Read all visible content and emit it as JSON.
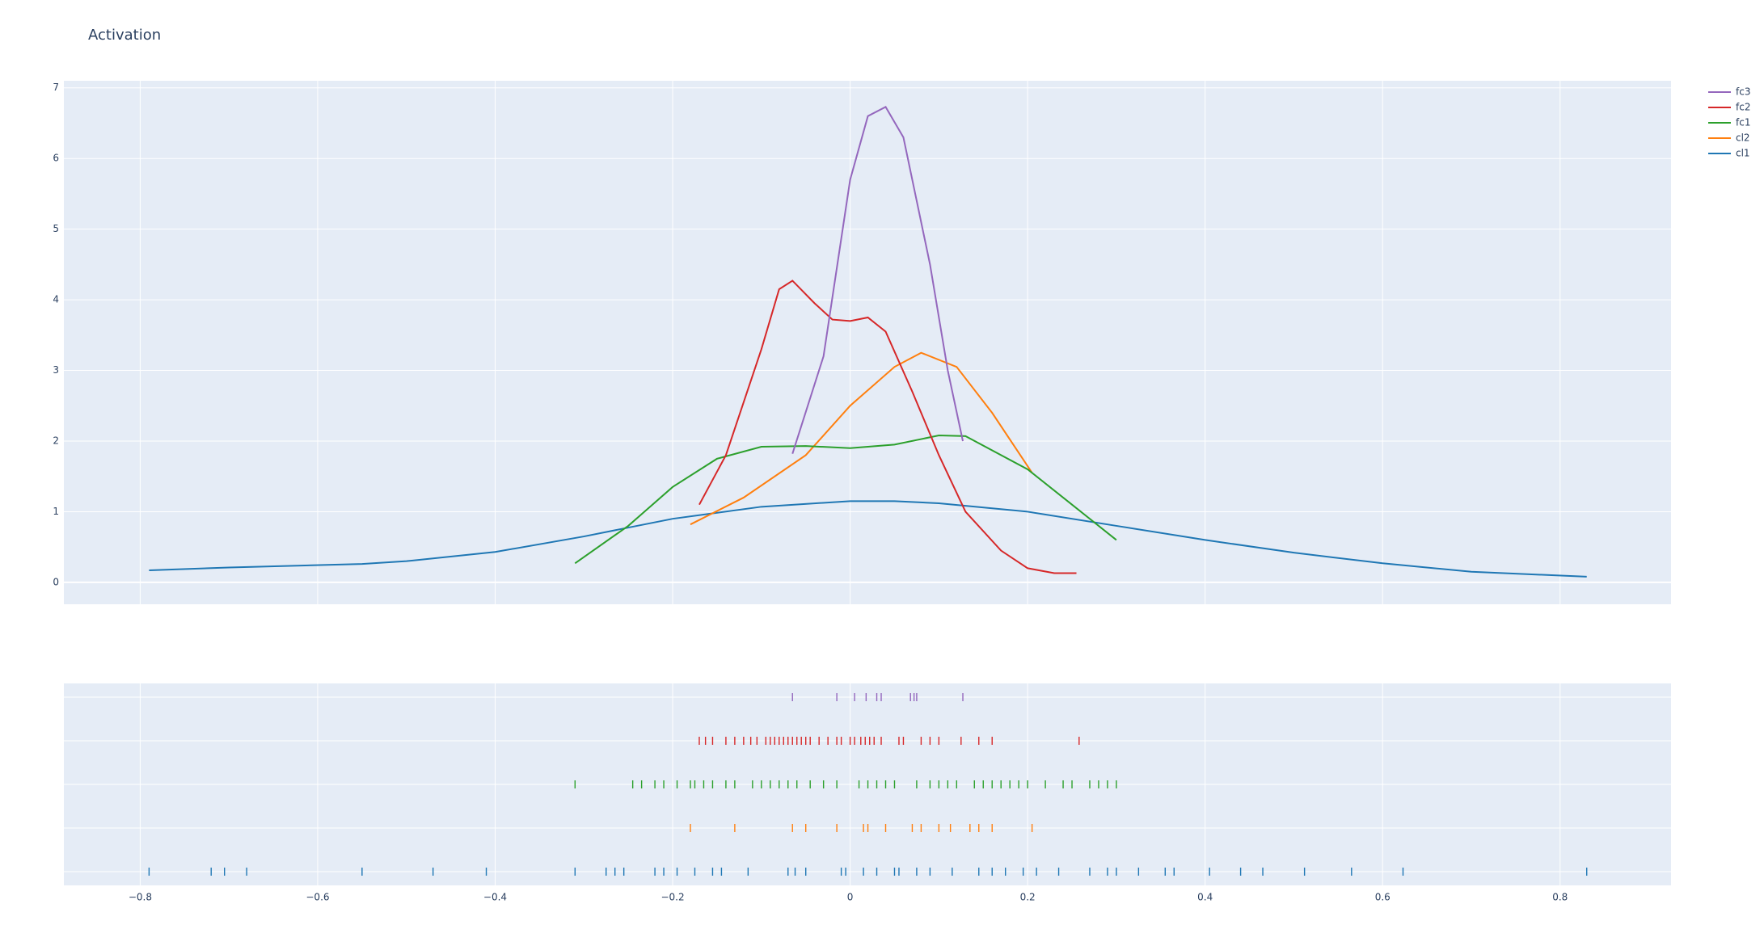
{
  "chart_data": [
    {
      "type": "line",
      "title": "Activation",
      "grid": true,
      "xlim": [
        -0.886,
        0.925
      ],
      "xticks": [
        -0.8,
        -0.6,
        -0.4,
        -0.2,
        0,
        0.2,
        0.4,
        0.6,
        0.8
      ],
      "ylim": [
        -0.31,
        7.1
      ],
      "yticks": [
        0,
        1,
        2,
        3,
        4,
        5,
        6,
        7
      ],
      "legend": "top-right",
      "series": [
        {
          "name": "fc3",
          "color": "#9467bd",
          "x": [
            -0.065,
            -0.03,
            0,
            0.02,
            0.04,
            0.06,
            0.09,
            0.11,
            0.127
          ],
          "values": [
            1.82,
            3.2,
            5.7,
            6.6,
            6.73,
            6.3,
            4.5,
            3.0,
            2.0
          ]
        },
        {
          "name": "fc2",
          "color": "#d62728",
          "x": [
            -0.17,
            -0.14,
            -0.1,
            -0.08,
            -0.065,
            -0.04,
            -0.02,
            0,
            0.02,
            0.04,
            0.07,
            0.1,
            0.13,
            0.17,
            0.2,
            0.23,
            0.255
          ],
          "values": [
            1.1,
            1.8,
            3.3,
            4.15,
            4.27,
            3.95,
            3.72,
            3.7,
            3.75,
            3.55,
            2.7,
            1.8,
            1.0,
            0.45,
            0.2,
            0.13,
            0.13
          ]
        },
        {
          "name": "fc1",
          "color": "#2ca02c",
          "x": [
            -0.31,
            -0.25,
            -0.2,
            -0.15,
            -0.1,
            -0.05,
            0,
            0.05,
            0.1,
            0.13,
            0.2,
            0.25,
            0.3
          ],
          "values": [
            0.27,
            0.8,
            1.35,
            1.75,
            1.92,
            1.93,
            1.9,
            1.95,
            2.08,
            2.07,
            1.6,
            1.1,
            0.6
          ]
        },
        {
          "name": "cl2",
          "color": "#ff7f0e",
          "x": [
            -0.18,
            -0.12,
            -0.05,
            0,
            0.05,
            0.08,
            0.12,
            0.16,
            0.205
          ],
          "values": [
            0.82,
            1.2,
            1.8,
            2.5,
            3.05,
            3.25,
            3.05,
            2.4,
            1.55
          ]
        },
        {
          "name": "cl1",
          "color": "#1f77b4",
          "x": [
            -0.79,
            -0.7,
            -0.55,
            -0.5,
            -0.4,
            -0.3,
            -0.2,
            -0.1,
            0,
            0.05,
            0.1,
            0.2,
            0.3,
            0.4,
            0.5,
            0.6,
            0.7,
            0.83
          ],
          "values": [
            0.17,
            0.21,
            0.26,
            0.3,
            0.43,
            0.65,
            0.9,
            1.07,
            1.15,
            1.15,
            1.12,
            1.0,
            0.8,
            0.6,
            0.42,
            0.27,
            0.15,
            0.08
          ]
        }
      ]
    },
    {
      "type": "rug",
      "grid": true,
      "xlim": [
        -0.886,
        0.925
      ],
      "xticks": [
        {
          "value": -0.8,
          "label": "−0.8"
        },
        {
          "value": -0.6,
          "label": "−0.6"
        },
        {
          "value": -0.4,
          "label": "−0.4"
        },
        {
          "value": -0.2,
          "label": "−0.2"
        },
        0,
        0.2,
        0.4,
        0.6,
        0.8
      ],
      "series": [
        {
          "color": "#9467bd",
          "values": [
            -0.065,
            -0.015,
            0.005,
            0.018,
            0.03,
            0.035,
            0.068,
            0.072,
            0.075,
            0.127
          ]
        },
        {
          "color": "#d62728",
          "values": [
            -0.17,
            -0.163,
            -0.155,
            -0.14,
            -0.13,
            -0.12,
            -0.112,
            -0.105,
            -0.095,
            -0.09,
            -0.085,
            -0.08,
            -0.075,
            -0.07,
            -0.065,
            -0.06,
            -0.055,
            -0.05,
            -0.045,
            -0.035,
            -0.025,
            -0.015,
            -0.01,
            0,
            0.005,
            0.012,
            0.017,
            0.022,
            0.027,
            0.035,
            0.055,
            0.06,
            0.08,
            0.09,
            0.1,
            0.125,
            0.145,
            0.16,
            0.258
          ]
        },
        {
          "color": "#2ca02c",
          "values": [
            -0.31,
            -0.245,
            -0.235,
            -0.22,
            -0.21,
            -0.195,
            -0.18,
            -0.175,
            -0.165,
            -0.155,
            -0.14,
            -0.13,
            -0.11,
            -0.1,
            -0.09,
            -0.08,
            -0.07,
            -0.06,
            -0.045,
            -0.03,
            -0.015,
            0.01,
            0.02,
            0.03,
            0.04,
            0.05,
            0.075,
            0.09,
            0.1,
            0.11,
            0.12,
            0.14,
            0.15,
            0.16,
            0.17,
            0.18,
            0.19,
            0.2,
            0.22,
            0.24,
            0.25,
            0.27,
            0.28,
            0.29,
            0.3
          ]
        },
        {
          "color": "#ff7f0e",
          "values": [
            -0.18,
            -0.13,
            -0.065,
            -0.05,
            -0.015,
            0.015,
            0.02,
            0.04,
            0.07,
            0.08,
            0.1,
            0.113,
            0.135,
            0.145,
            0.16,
            0.205
          ]
        },
        {
          "color": "#1f77b4",
          "values": [
            -0.79,
            -0.72,
            -0.705,
            -0.68,
            -0.55,
            -0.47,
            -0.41,
            -0.31,
            -0.275,
            -0.265,
            -0.255,
            -0.22,
            -0.21,
            -0.195,
            -0.175,
            -0.155,
            -0.145,
            -0.115,
            -0.07,
            -0.062,
            -0.05,
            -0.01,
            -0.005,
            0.015,
            0.03,
            0.05,
            0.055,
            0.075,
            0.09,
            0.115,
            0.145,
            0.16,
            0.175,
            0.195,
            0.21,
            0.235,
            0.27,
            0.29,
            0.3,
            0.325,
            0.355,
            0.365,
            0.405,
            0.44,
            0.465,
            0.512,
            0.565,
            0.623,
            0.83
          ]
        }
      ]
    }
  ]
}
